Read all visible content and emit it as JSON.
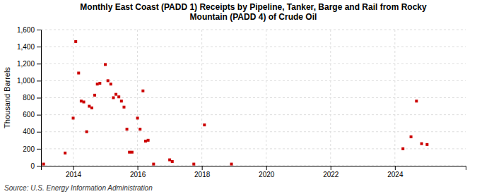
{
  "chart_data": {
    "type": "scatter",
    "title": "Monthly East Coast (PADD 1) Receipts by Pipeline, Tanker, Barge and Rail from Rocky\nMountain (PADD 4) of Crude Oil",
    "y_label": "Thousand Barrels",
    "source": "Source: U.S. Energy Information Administration",
    "color": "#cc0000",
    "marker": "square",
    "grid": true,
    "xlim": [
      2013.0,
      2026.2
    ],
    "ylim": [
      0,
      1600
    ],
    "xticks": [
      2014,
      2016,
      2018,
      2020,
      2022,
      2024
    ],
    "yticks": [
      0,
      200,
      400,
      600,
      800,
      {
        "value": 1000,
        "label": "1,000"
      },
      {
        "value": 1200,
        "label": "1,200"
      },
      {
        "value": 1400,
        "label": "1,400"
      },
      {
        "value": 1600,
        "label": "1,600"
      }
    ],
    "x": [
      2013.08,
      2013.75,
      2014.0,
      2014.08,
      2014.17,
      2014.25,
      2014.33,
      2014.42,
      2014.5,
      2014.58,
      2014.67,
      2014.75,
      2014.83,
      2015.0,
      2015.08,
      2015.17,
      2015.25,
      2015.33,
      2015.42,
      2015.5,
      2015.58,
      2015.67,
      2015.75,
      2015.83,
      2016.0,
      2016.08,
      2016.17,
      2016.25,
      2016.33,
      2016.5,
      2017.0,
      2017.08,
      2017.75,
      2018.08,
      2018.92,
      2024.25,
      2024.5,
      2024.67,
      2024.83,
      2025.0
    ],
    "values": [
      20,
      150,
      560,
      1460,
      1090,
      760,
      750,
      400,
      700,
      680,
      830,
      960,
      970,
      1190,
      1000,
      960,
      800,
      840,
      810,
      760,
      690,
      430,
      160,
      160,
      560,
      430,
      880,
      290,
      300,
      20,
      70,
      50,
      20,
      480,
      20,
      200,
      340,
      760,
      260,
      250
    ]
  }
}
